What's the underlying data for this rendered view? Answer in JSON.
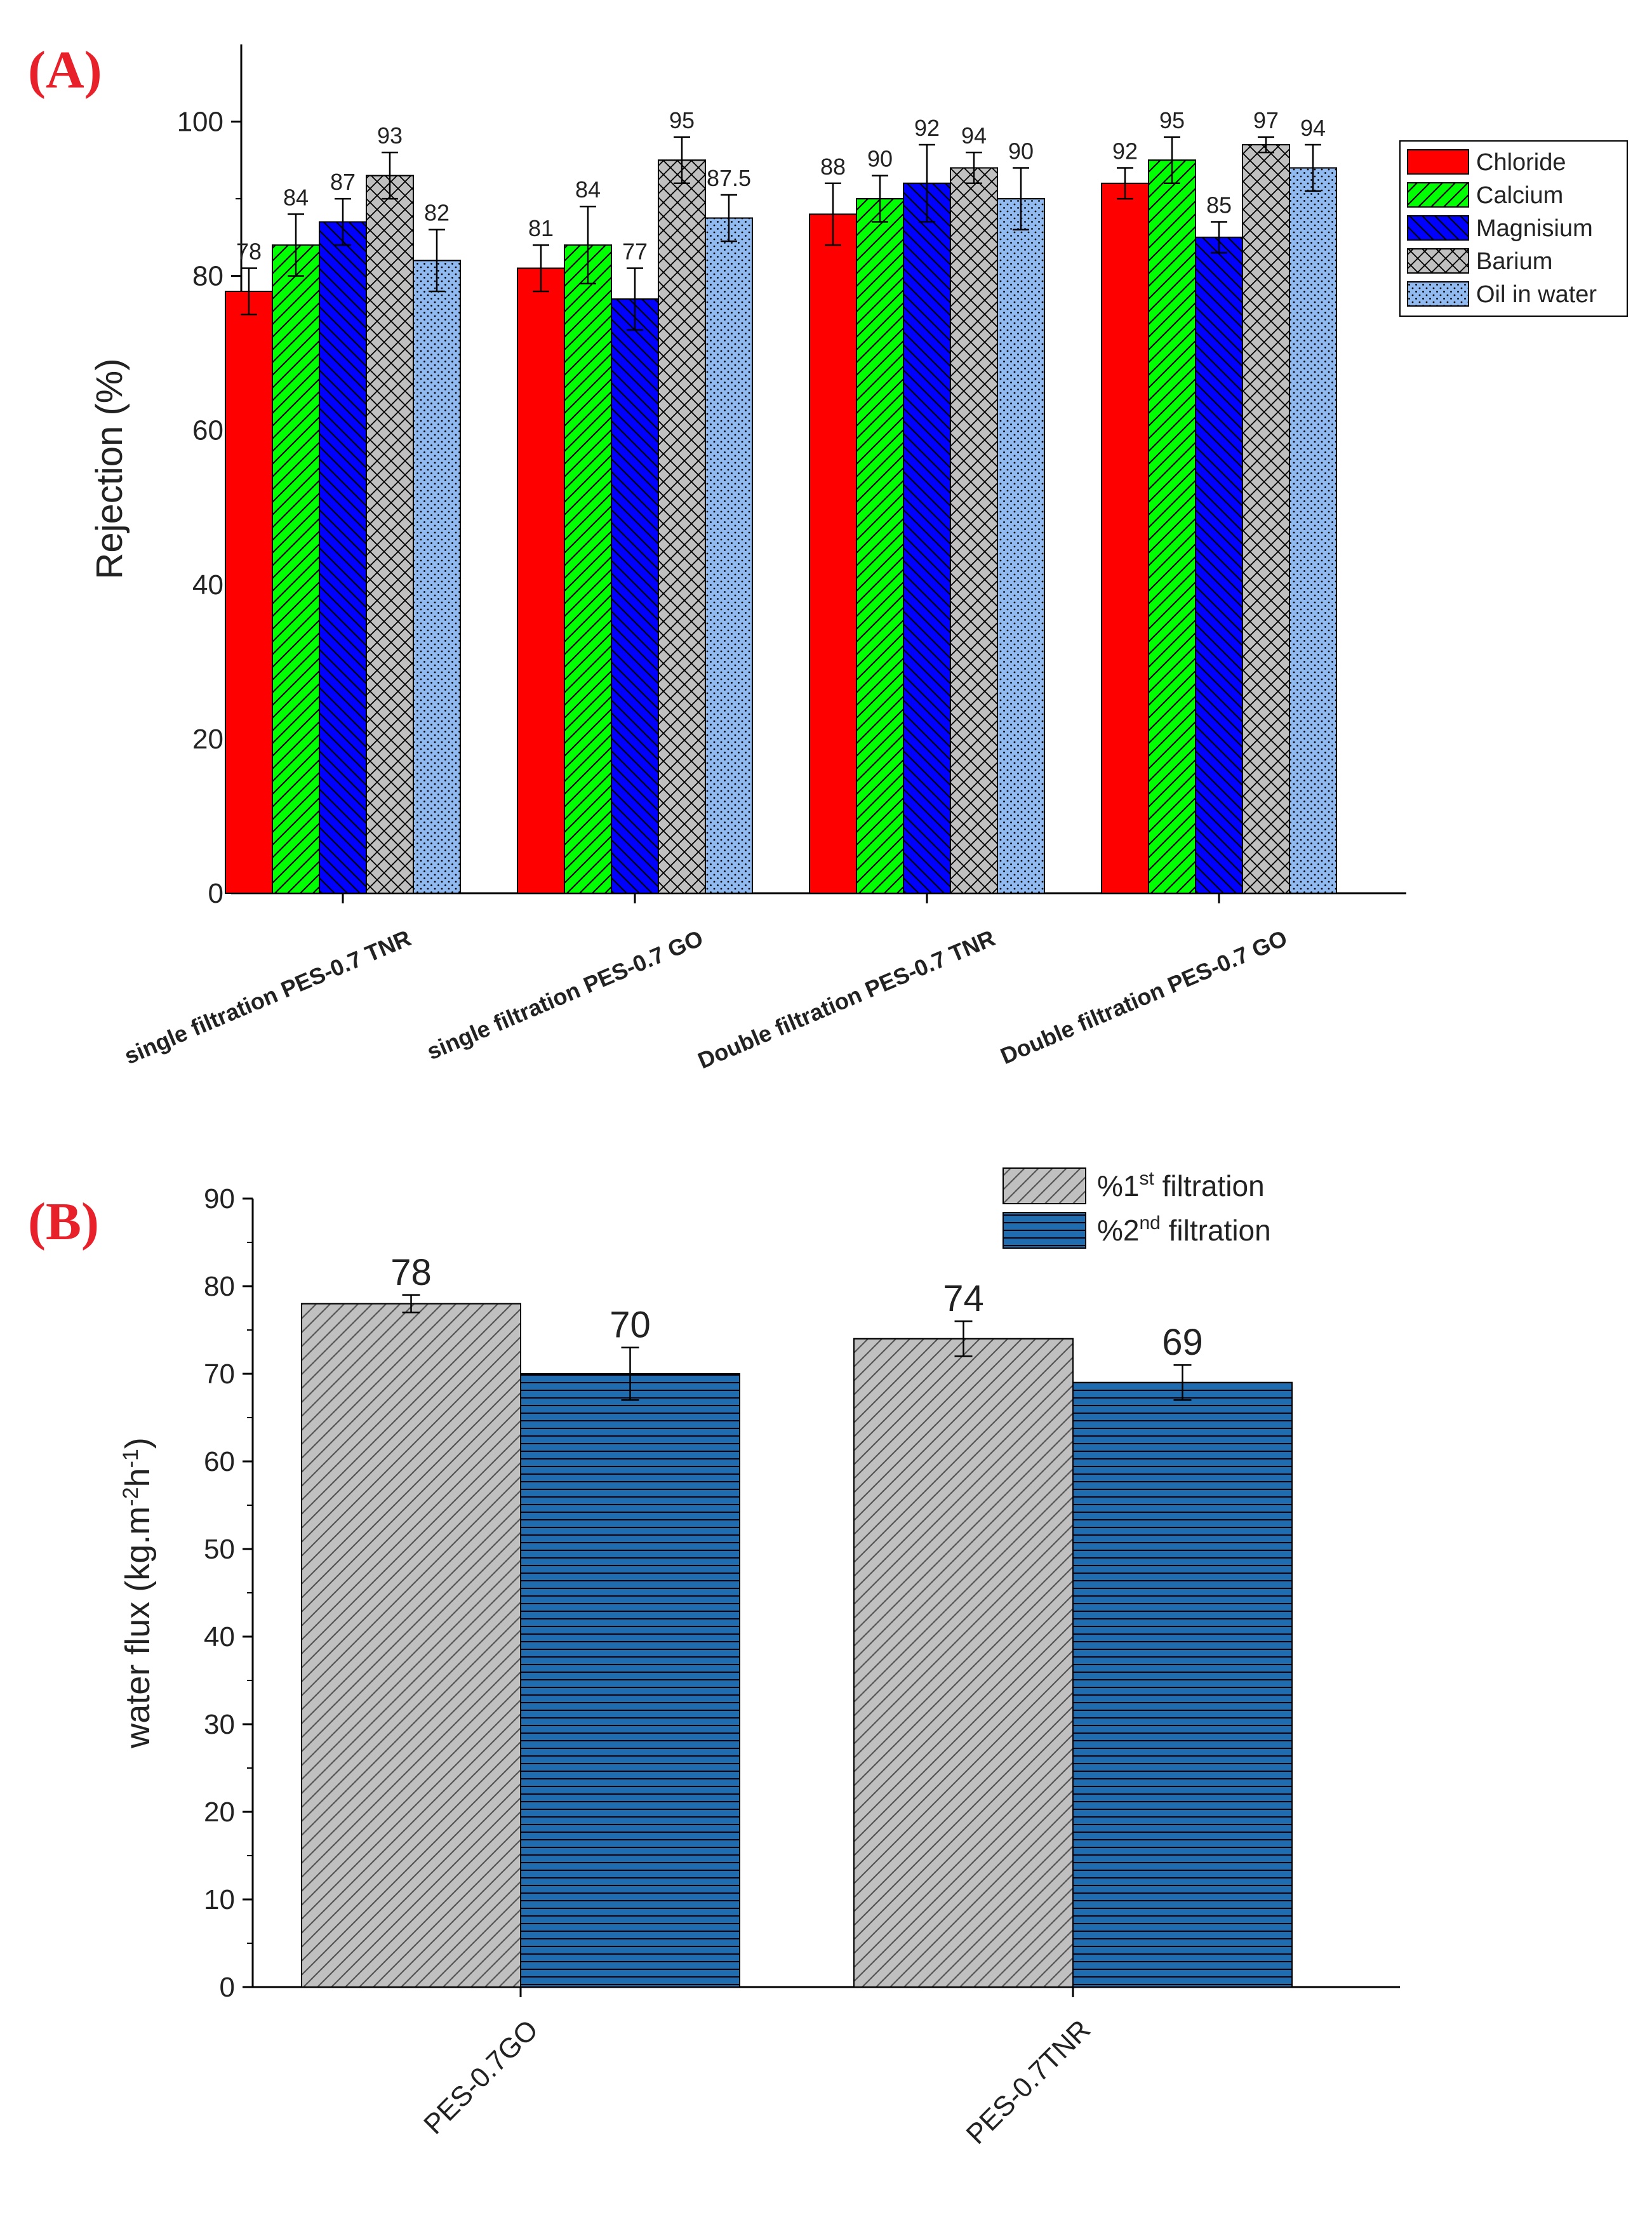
{
  "chart_data": [
    {
      "panel_label": "(A)",
      "type": "bar",
      "title": "",
      "xlabel": "",
      "ylabel": "Rejection (%)",
      "ylim": [
        0,
        110
      ],
      "yticks": [
        0,
        20,
        40,
        60,
        80,
        100
      ],
      "grid": false,
      "legend_position": "top-right",
      "categories": [
        "single filtration PES-0.7 TNR",
        "single filtration PES-0.7 GO",
        "Double filtration PES-0.7 TNR",
        "Double filtration PES-0.7 GO"
      ],
      "series": [
        {
          "name": "Chloride",
          "color": "#ff0000",
          "pattern": "solid",
          "values": [
            78,
            81,
            88,
            92
          ],
          "errors": [
            3,
            3,
            4,
            2
          ],
          "labels": [
            "78",
            "81",
            "88",
            "92"
          ]
        },
        {
          "name": "Calcium",
          "color": "#00ff00",
          "pattern": "diagonal",
          "values": [
            84,
            84,
            90,
            95
          ],
          "errors": [
            4,
            5,
            3,
            3
          ],
          "labels": [
            "84",
            "84",
            "90",
            "95"
          ]
        },
        {
          "name": "Magnisium",
          "color": "#0000ff",
          "pattern": "back-diagonal",
          "values": [
            87,
            77,
            92,
            85
          ],
          "errors": [
            3,
            4,
            5,
            2
          ],
          "labels": [
            "87",
            "77",
            "92",
            "85"
          ]
        },
        {
          "name": "Barium",
          "color": "#c0c0c0",
          "pattern": "crosshatch",
          "values": [
            93,
            95,
            94,
            97
          ],
          "errors": [
            3,
            3,
            2,
            1
          ],
          "labels": [
            "93",
            "95",
            "94",
            "97"
          ]
        },
        {
          "name": "Oil in water",
          "color": "#90baf0",
          "pattern": "dots",
          "values": [
            82,
            87.5,
            90,
            94
          ],
          "errors": [
            4,
            3,
            4,
            3
          ],
          "labels": [
            "82",
            "87.5",
            "90",
            "94"
          ]
        }
      ]
    },
    {
      "panel_label": "(B)",
      "type": "bar",
      "title": "",
      "xlabel": "",
      "ylabel": "water flux (kg.m",
      "ylabel_sup1": "-2",
      "ylabel_mid": "h",
      "ylabel_sup2": "-1",
      "ylabel_end": ")",
      "ylim": [
        0,
        90
      ],
      "yticks": [
        0,
        10,
        20,
        30,
        40,
        50,
        60,
        70,
        80,
        90
      ],
      "grid": false,
      "legend_position": "top-right",
      "categories": [
        "PES-0.7GO",
        "PES-0.7TNR"
      ],
      "series": [
        {
          "name": "%1st filtration",
          "legend_prefix": "%1",
          "legend_sup": "st",
          "legend_suffix": " filtration",
          "color": "#c0c0c0",
          "pattern": "diagonal",
          "values": [
            78,
            74
          ],
          "errors": [
            1,
            2
          ],
          "labels": [
            "78",
            "74"
          ]
        },
        {
          "name": "%2nd filtration",
          "legend_prefix": "%2",
          "legend_sup": "nd",
          "legend_suffix": " filtration",
          "color": "#1f6cb0",
          "pattern": "horizontal",
          "values": [
            70,
            69
          ],
          "errors": [
            3,
            2
          ],
          "labels": [
            "70",
            "69"
          ]
        }
      ]
    }
  ]
}
